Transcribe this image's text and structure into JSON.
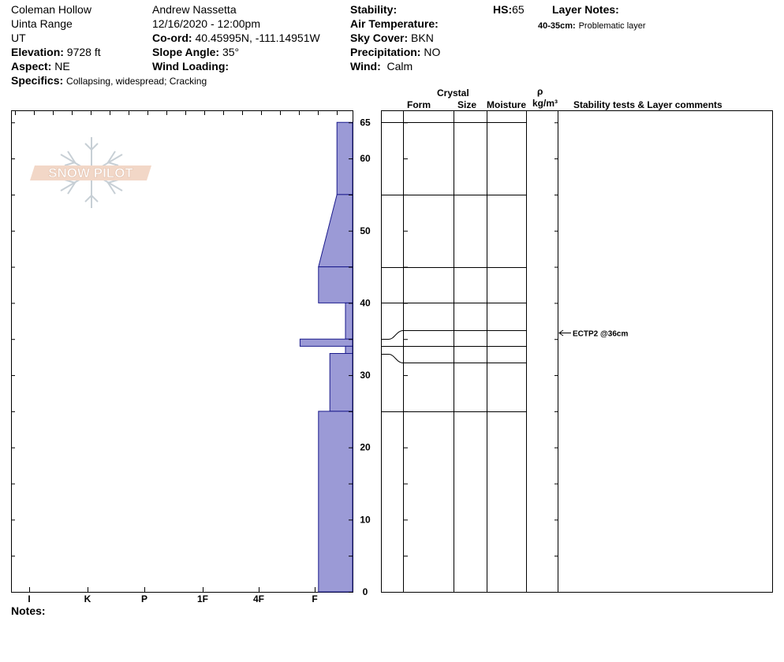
{
  "header": {
    "location": "Coleman Hollow",
    "range": "Uinta Range",
    "state": "UT",
    "elevation_label": "Elevation:",
    "elevation_value": "9728 ft",
    "aspect_label": "Aspect:",
    "aspect_value": "NE",
    "specifics_label": "Specifics:",
    "specifics_value": "Collapsing, widespread;  Cracking",
    "observer": "Andrew Nassetta",
    "datetime": "12/16/2020 - 12:00pm",
    "coord_label": "Co-ord:",
    "coord_value": "40.45995N, -111.14951W",
    "slope_label": "Slope Angle:",
    "slope_value": "35°",
    "wind_loading_label": "Wind Loading:",
    "stability_label": "Stability:",
    "air_temp_label": "Air Temperature:",
    "sky_label": "Sky Cover:",
    "sky_value": "BKN",
    "precip_label": "Precipitation:",
    "precip_value": "NO",
    "wind_label": "Wind:",
    "wind_value": "Calm",
    "hs_label": "HS:",
    "hs_value": "65",
    "layer_notes_label": "Layer Notes:",
    "layer_note_range": "40-35cm:",
    "layer_note_text": "Problematic layer"
  },
  "columns": {
    "crystal": "Crystal",
    "form": "Form",
    "size": "Size",
    "moisture": "Moisture",
    "rho": "ρ",
    "density_unit": "kg/m³",
    "stability": "Stability tests & Layer comments"
  },
  "logo_text": "SNOW PILOT",
  "notes_label": "Notes:",
  "stability_test": {
    "label": "ECTP2 @36cm",
    "depth": 36
  },
  "chart_data": {
    "type": "snow-profile",
    "height_axis": {
      "min": 0,
      "max": 65,
      "ticks": [
        0,
        10,
        20,
        30,
        40,
        50,
        60,
        65
      ]
    },
    "hardness_axis": {
      "categories": [
        "I",
        "K",
        "P",
        "1F",
        "4F",
        "F"
      ]
    },
    "hardness_profile": [
      {
        "bottom": 55,
        "top": 65,
        "hardness_bottom": 0.55,
        "hardness_top": 0.55
      },
      {
        "bottom": 45,
        "top": 55,
        "hardness_bottom": 1.2,
        "hardness_top": 0.55
      },
      {
        "bottom": 40,
        "top": 45,
        "hardness_bottom": 1.2,
        "hardness_top": 1.2
      },
      {
        "bottom": 35,
        "top": 40,
        "hardness_bottom": 0.25,
        "hardness_top": 0.25
      },
      {
        "bottom": 34,
        "top": 35,
        "hardness_bottom": 1.85,
        "hardness_top": 1.85
      },
      {
        "bottom": 33,
        "top": 34,
        "hardness_bottom": 0.25,
        "hardness_top": 0.25
      },
      {
        "bottom": 25,
        "top": 33,
        "hardness_bottom": 0.8,
        "hardness_top": 0.8
      },
      {
        "bottom": 0,
        "top": 25,
        "hardness_bottom": 1.2,
        "hardness_top": 1.2
      }
    ],
    "layer_boundaries": [
      65,
      55,
      45,
      40,
      36.2,
      34,
      31.8,
      25
    ]
  }
}
